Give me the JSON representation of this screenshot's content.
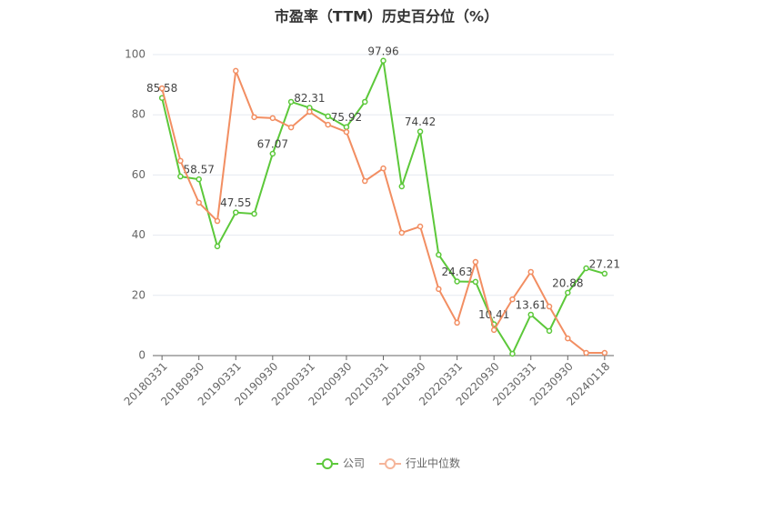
{
  "chart_data": {
    "type": "line",
    "title": "市盈率（TTM）历史百分位（%）",
    "categories": [
      "20180331",
      null,
      "20180930",
      null,
      "20190331",
      null,
      "20190930",
      null,
      "20200331",
      null,
      "20200930",
      null,
      "20210331",
      null,
      "20210930",
      null,
      "20220331",
      null,
      "20220930",
      null,
      "20230331",
      null,
      "20230930",
      null,
      "20240118"
    ],
    "series": [
      {
        "name": "公司",
        "color": "#5cc83a",
        "values": [
          85.58,
          59.5,
          58.57,
          36.3,
          47.55,
          47.1,
          67.07,
          84.3,
          82.31,
          79.5,
          75.92,
          84.3,
          97.96,
          56.2,
          74.42,
          33.5,
          24.63,
          24.5,
          10.41,
          0.6,
          13.61,
          8.2,
          20.88,
          29.0,
          27.21
        ],
        "value_labels": [
          "85.58",
          null,
          "58.57",
          null,
          "47.55",
          null,
          "67.07",
          null,
          "82.31",
          null,
          "75.92",
          null,
          "97.96",
          null,
          "74.42",
          null,
          "24.63",
          null,
          "10.41",
          null,
          "13.61",
          null,
          "20.88",
          null,
          "27.21"
        ]
      },
      {
        "name": "行业中位数",
        "color": "#f28e62",
        "values": [
          88.8,
          64.7,
          50.8,
          44.7,
          94.6,
          79.2,
          78.9,
          75.8,
          81.0,
          76.7,
          74.3,
          58.0,
          62.2,
          40.8,
          42.9,
          22.1,
          10.9,
          31.1,
          8.5,
          18.7,
          27.8,
          16.3,
          5.7,
          0.9,
          0.9
        ]
      }
    ],
    "ylim": [
      0,
      100
    ],
    "yticks": [
      0,
      20,
      40,
      60,
      80,
      100
    ],
    "grid": true,
    "legend": "bottom"
  }
}
